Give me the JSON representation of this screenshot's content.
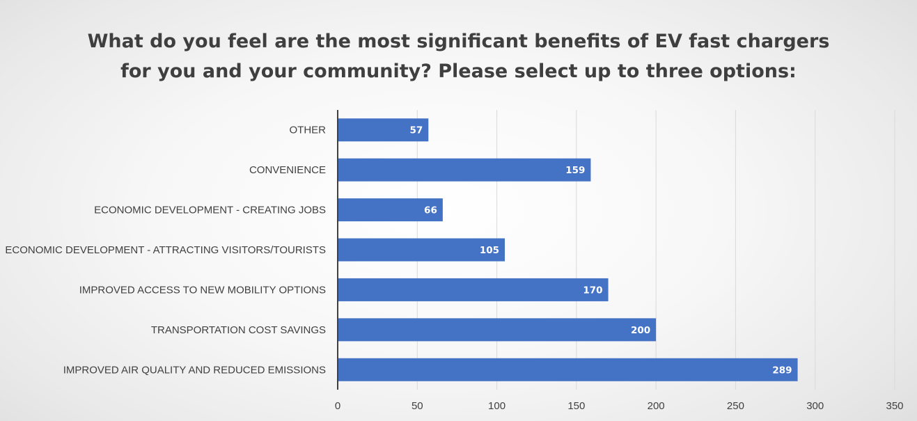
{
  "chart_data": {
    "type": "bar",
    "orientation": "horizontal",
    "title_lines": [
      "What do you feel are the most significant benefits of EV fast chargers",
      "for you and your community? Please select up to three options:"
    ],
    "categories": [
      "OTHER",
      "CONVENIENCE",
      "ECONOMIC DEVELOPMENT - CREATING JOBS",
      "ECONOMIC DEVELOPMENT - ATTRACTING VISITORS/TOURISTS",
      "IMPROVED ACCESS TO NEW MOBILITY OPTIONS",
      "TRANSPORTATION COST SAVINGS",
      "IMPROVED AIR QUALITY AND REDUCED EMISSIONS"
    ],
    "values": [
      57,
      159,
      66,
      105,
      170,
      200,
      289
    ],
    "xlim": [
      0,
      350
    ],
    "x_ticks": [
      0,
      50,
      100,
      150,
      200,
      250,
      300,
      350
    ],
    "grid": "vertical",
    "legend": "none",
    "data_labels": true,
    "bar_color": "#4472C4",
    "grid_color": "#d9d9d9",
    "axis_color": "#404040"
  }
}
